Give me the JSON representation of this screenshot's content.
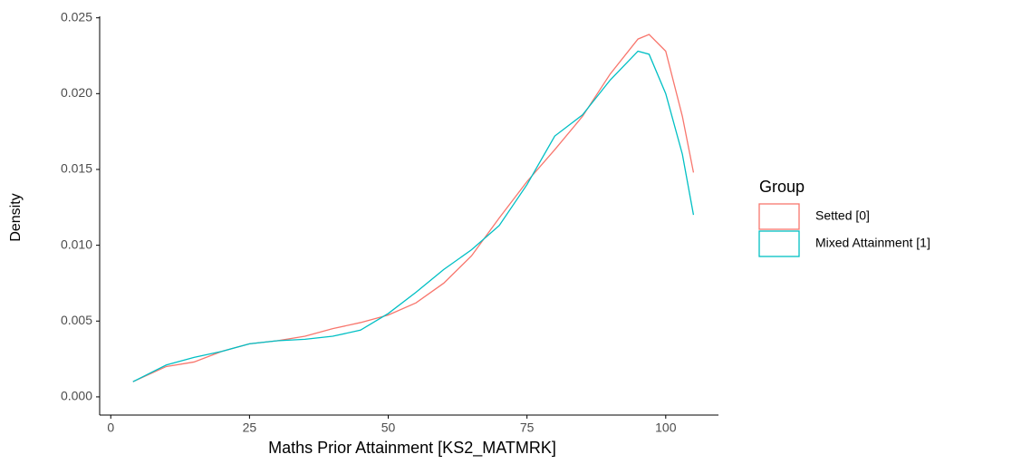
{
  "chart_data": {
    "type": "line",
    "x_label": "Maths Prior Attainment [KS2_MATMRK]",
    "y_label": "Density",
    "legend_title": "Group",
    "legend": "right",
    "grid": false,
    "x": [
      4,
      10,
      15,
      20,
      25,
      30,
      35,
      40,
      45,
      50,
      55,
      60,
      65,
      70,
      75,
      80,
      85,
      90,
      95,
      97,
      100,
      103,
      105
    ],
    "series": [
      {
        "name": "Setted [0]",
        "color": "#F8766D",
        "values": [
          0.001,
          0.002,
          0.0023,
          0.003,
          0.0035,
          0.0037,
          0.004,
          0.0045,
          0.0049,
          0.0054,
          0.0062,
          0.0075,
          0.0093,
          0.0118,
          0.0142,
          0.0163,
          0.0185,
          0.0213,
          0.0236,
          0.0239,
          0.0228,
          0.0185,
          0.0148
        ]
      },
      {
        "name": "Mixed Attainment [1]",
        "color": "#00BFC4",
        "values": [
          0.001,
          0.0021,
          0.0026,
          0.003,
          0.0035,
          0.0037,
          0.0038,
          0.004,
          0.0044,
          0.0055,
          0.0069,
          0.0084,
          0.0097,
          0.0113,
          0.014,
          0.0172,
          0.0186,
          0.0209,
          0.0228,
          0.0226,
          0.02,
          0.016,
          0.012
        ]
      }
    ],
    "xlim": [
      -2,
      109.5
    ],
    "xticks": [
      0,
      25,
      50,
      75,
      100
    ],
    "ylim": [
      -0.0012,
      0.0251
    ],
    "yticks": [
      {
        "value": 0,
        "label": "0.000"
      },
      {
        "value": 0.005,
        "label": "0.005"
      },
      {
        "value": 0.01,
        "label": "0.010"
      },
      {
        "value": 0.015,
        "label": "0.015"
      },
      {
        "value": 0.02,
        "label": "0.020"
      },
      {
        "value": 0.025,
        "label": "0.025"
      }
    ]
  }
}
